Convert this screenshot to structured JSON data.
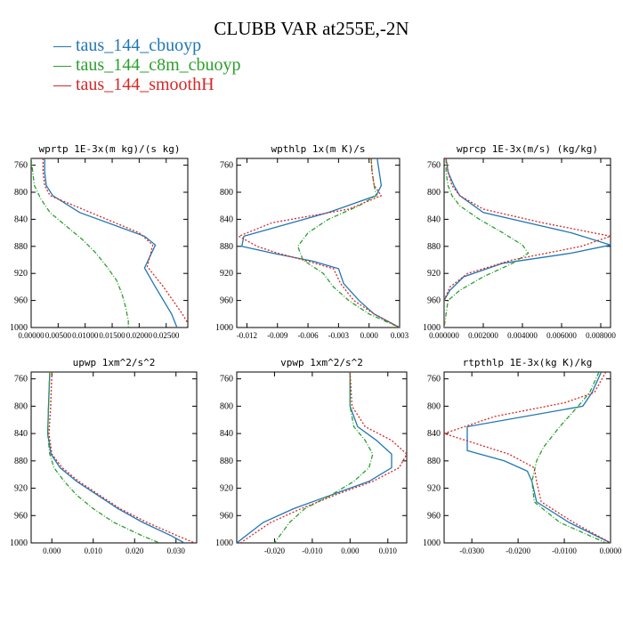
{
  "title": "CLUBB VAR at255E,-2N",
  "legend": [
    {
      "label": "taus_144_cbuoyp",
      "color": "#1f77b4"
    },
    {
      "label": "taus_144_c8m_cbuoyp",
      "color": "#2ca02c"
    },
    {
      "label": "taus_144_smoothH",
      "color": "#d62728"
    }
  ],
  "chart_data": [
    {
      "type": "line",
      "title": "wprtp  1E-3x(m kg)/(s kg)",
      "xlim": [
        0,
        0.029
      ],
      "ylim": [
        1000,
        750
      ],
      "yticks": [
        760,
        800,
        840,
        880,
        920,
        960,
        1000
      ],
      "xticks": [
        0.0,
        0.005,
        0.01,
        0.015,
        0.02,
        0.025
      ],
      "xtick_labels": [
        "0.00000",
        "0.00500",
        "0.01000",
        "0.01500",
        "0.02000",
        "0.02500"
      ],
      "series": [
        {
          "name": "taus_144_cbuoyp",
          "color": "#1f77b4",
          "dash": "",
          "y": [
            750,
            770,
            790,
            805,
            830,
            865,
            878,
            912,
            940,
            980,
            1000
          ],
          "x": [
            0.0025,
            0.0025,
            0.0028,
            0.004,
            0.009,
            0.021,
            0.023,
            0.021,
            0.023,
            0.026,
            0.027
          ]
        },
        {
          "name": "taus_144_c8m_cbuoyp",
          "color": "#2ca02c",
          "dash": "5,2,1,2",
          "y": [
            750,
            770,
            790,
            810,
            830,
            850,
            870,
            890,
            910,
            930,
            950,
            970,
            990,
            1000
          ],
          "x": [
            0.0,
            0.0003,
            0.0006,
            0.0018,
            0.0035,
            0.0065,
            0.0095,
            0.012,
            0.014,
            0.0158,
            0.0168,
            0.0175,
            0.018,
            0.018
          ]
        },
        {
          "name": "taus_144_smoothH",
          "color": "#d62728",
          "dash": "2,2",
          "y": [
            750,
            770,
            790,
            805,
            825,
            860,
            878,
            910,
            940,
            980,
            1000
          ],
          "x": [
            0.0022,
            0.0022,
            0.0025,
            0.0035,
            0.0095,
            0.02,
            0.0225,
            0.0215,
            0.0245,
            0.028,
            0.0295
          ]
        }
      ]
    },
    {
      "type": "line",
      "title": "wpthlp  1x(m K)/s",
      "xlim": [
        -0.013,
        0.003
      ],
      "ylim": [
        1000,
        750
      ],
      "yticks": [
        760,
        800,
        840,
        880,
        920,
        960,
        1000
      ],
      "xticks": [
        -0.012,
        -0.009,
        -0.006,
        -0.003,
        0.0,
        0.003
      ],
      "xtick_labels": [
        "-0.012",
        "-0.009",
        "-0.006",
        "-0.003",
        "0.000",
        "0.003"
      ],
      "series": [
        {
          "name": "taus_144_cbuoyp",
          "color": "#1f77b4",
          "dash": "",
          "y": [
            750,
            770,
            790,
            805,
            830,
            865,
            880,
            890,
            902,
            913,
            935,
            960,
            980,
            1000
          ],
          "x": [
            0.0008,
            0.001,
            0.0012,
            0.0007,
            -0.004,
            -0.0123,
            -0.0125,
            -0.0095,
            -0.0055,
            -0.003,
            -0.0025,
            -0.001,
            0.0005,
            0.003
          ]
        },
        {
          "name": "taus_144_c8m_cbuoyp",
          "color": "#2ca02c",
          "dash": "5,2,1,2",
          "y": [
            750,
            770,
            790,
            805,
            820,
            840,
            860,
            880,
            900,
            920,
            940,
            960,
            980,
            1000
          ],
          "x": [
            0.0002,
            0.0003,
            0.0005,
            0.0007,
            -0.001,
            -0.004,
            -0.006,
            -0.007,
            -0.0065,
            -0.0045,
            -0.0035,
            -0.002,
            0.0,
            0.003
          ]
        },
        {
          "name": "taus_144_smoothH",
          "color": "#d62728",
          "dash": "2,2",
          "y": [
            750,
            770,
            790,
            805,
            825,
            845,
            865,
            880,
            890,
            902,
            913,
            935,
            960,
            980,
            1000
          ],
          "x": [
            0.0002,
            0.0003,
            0.0005,
            0.0012,
            -0.002,
            -0.0095,
            -0.0128,
            -0.011,
            -0.009,
            -0.006,
            -0.0035,
            -0.0028,
            -0.0015,
            0.0005,
            0.003
          ]
        }
      ]
    },
    {
      "type": "line",
      "title": "wprcp  1E-3x(m/s) (kg/kg)",
      "xlim": [
        0,
        0.0085
      ],
      "ylim": [
        1000,
        750
      ],
      "yticks": [
        760,
        800,
        840,
        880,
        920,
        960,
        1000
      ],
      "xticks": [
        0.0,
        0.002,
        0.004,
        0.006,
        0.008
      ],
      "xtick_labels": [
        "0.000000",
        "0.002000",
        "0.004000",
        "0.006000",
        "0.008000"
      ],
      "series": [
        {
          "name": "taus_144_cbuoyp",
          "color": "#1f77b4",
          "dash": "",
          "y": [
            750,
            770,
            790,
            805,
            830,
            860,
            878,
            890,
            905,
            925,
            945,
            960,
            1000
          ],
          "x": [
            0.0001,
            0.0002,
            0.0005,
            0.0008,
            0.002,
            0.0065,
            0.0085,
            0.0065,
            0.003,
            0.001,
            0.0003,
            0.0,
            0.0
          ]
        },
        {
          "name": "taus_144_c8m_cbuoyp",
          "color": "#2ca02c",
          "dash": "5,2,1,2",
          "y": [
            750,
            770,
            790,
            805,
            820,
            840,
            860,
            878,
            890,
            905,
            925,
            945,
            960,
            1000
          ],
          "x": [
            0.0001,
            0.0001,
            0.0002,
            0.0004,
            0.0008,
            0.0018,
            0.003,
            0.004,
            0.0043,
            0.0035,
            0.002,
            0.0008,
            0.0002,
            0.0
          ]
        },
        {
          "name": "taus_144_smoothH",
          "color": "#d62728",
          "dash": "2,2",
          "y": [
            750,
            770,
            790,
            805,
            825,
            845,
            865,
            880,
            900,
            920,
            940,
            960,
            1000
          ],
          "x": [
            0.0001,
            0.0002,
            0.0004,
            0.0008,
            0.002,
            0.005,
            0.0085,
            0.007,
            0.0035,
            0.0012,
            0.0003,
            0.0,
            0.0
          ]
        }
      ]
    },
    {
      "type": "line",
      "title": "upwp  1xm^2/s^2",
      "xlim": [
        -0.005,
        0.035
      ],
      "ylim": [
        1000,
        750
      ],
      "yticks": [
        760,
        800,
        840,
        880,
        920,
        960,
        1000
      ],
      "xticks": [
        0.0,
        0.01,
        0.02,
        0.03
      ],
      "xtick_labels": [
        "0.000",
        "0.010",
        "0.020",
        "0.030"
      ],
      "series": [
        {
          "name": "taus_144_cbuoyp",
          "color": "#1f77b4",
          "dash": "",
          "y": [
            750,
            800,
            840,
            870,
            890,
            910,
            930,
            950,
            970,
            990,
            1000
          ],
          "x": [
            -0.0005,
            -0.0008,
            -0.001,
            -0.0002,
            0.002,
            0.006,
            0.011,
            0.016,
            0.022,
            0.029,
            0.032
          ]
        },
        {
          "name": "taus_144_c8m_cbuoyp",
          "color": "#2ca02c",
          "dash": "5,2,1,2",
          "y": [
            750,
            800,
            840,
            870,
            890,
            910,
            930,
            950,
            970,
            990,
            1000
          ],
          "x": [
            -0.0005,
            -0.0008,
            -0.001,
            -0.0005,
            0.0005,
            0.003,
            0.006,
            0.01,
            0.015,
            0.022,
            0.026
          ]
        },
        {
          "name": "taus_144_smoothH",
          "color": "#d62728",
          "dash": "2,2",
          "y": [
            750,
            800,
            840,
            870,
            890,
            910,
            930,
            950,
            970,
            990,
            1000
          ],
          "x": [
            0.0,
            -0.0003,
            -0.0007,
            0.0,
            0.0025,
            0.0065,
            0.0115,
            0.0165,
            0.023,
            0.0305,
            0.0345
          ]
        }
      ]
    },
    {
      "type": "line",
      "title": "vpwp  1xm^2/s^2",
      "xlim": [
        -0.03,
        0.015
      ],
      "ylim": [
        1000,
        750
      ],
      "yticks": [
        760,
        800,
        840,
        880,
        920,
        960,
        1000
      ],
      "xticks": [
        -0.02,
        -0.01,
        0.0,
        0.01
      ],
      "xtick_labels": [
        "-0.020",
        "-0.010",
        "0.000",
        "0.010"
      ],
      "series": [
        {
          "name": "taus_144_cbuoyp",
          "color": "#1f77b4",
          "dash": "",
          "y": [
            750,
            800,
            830,
            850,
            870,
            890,
            910,
            930,
            950,
            970,
            1000
          ],
          "x": [
            0.0,
            0.0,
            0.002,
            0.007,
            0.011,
            0.011,
            0.005,
            -0.005,
            -0.015,
            -0.023,
            -0.03
          ]
        },
        {
          "name": "taus_144_c8m_cbuoyp",
          "color": "#2ca02c",
          "dash": "5,2,1,2",
          "y": [
            750,
            800,
            830,
            850,
            870,
            890,
            910,
            930,
            950,
            970,
            1000
          ],
          "x": [
            0.0,
            0.0,
            0.001,
            0.004,
            0.006,
            0.005,
            0.001,
            -0.005,
            -0.012,
            -0.016,
            -0.02
          ]
        },
        {
          "name": "taus_144_smoothH",
          "color": "#d62728",
          "dash": "2,2",
          "y": [
            750,
            800,
            830,
            850,
            870,
            890,
            910,
            930,
            950,
            970,
            1000
          ],
          "x": [
            0.0,
            0.0005,
            0.004,
            0.011,
            0.015,
            0.013,
            0.006,
            -0.004,
            -0.013,
            -0.021,
            -0.029
          ]
        }
      ]
    },
    {
      "type": "line",
      "title": "rtpthlp  1E-3x(kg K)/kg",
      "xlim": [
        -0.036,
        0.0
      ],
      "ylim": [
        1000,
        750
      ],
      "yticks": [
        760,
        800,
        840,
        880,
        920,
        960,
        1000
      ],
      "xticks": [
        -0.03,
        -0.02,
        -0.01,
        0.0
      ],
      "xtick_labels": [
        "-0.0300",
        "-0.0200",
        "-0.0100",
        "0.0000"
      ],
      "series": [
        {
          "name": "taus_144_cbuoyp",
          "color": "#1f77b4",
          "dash": "",
          "y": [
            750,
            780,
            800,
            830,
            865,
            880,
            895,
            910,
            940,
            970,
            1000
          ],
          "x": [
            -0.002,
            -0.004,
            -0.006,
            -0.031,
            -0.031,
            -0.023,
            -0.018,
            -0.017,
            -0.016,
            -0.009,
            0.0
          ]
        },
        {
          "name": "taus_144_c8m_cbuoyp",
          "color": "#2ca02c",
          "dash": "5,2,1,2",
          "y": [
            750,
            780,
            800,
            830,
            860,
            880,
            895,
            910,
            940,
            970,
            1000
          ],
          "x": [
            -0.0025,
            -0.0045,
            -0.007,
            -0.011,
            -0.0145,
            -0.016,
            -0.0165,
            -0.017,
            -0.0165,
            -0.011,
            -0.001
          ]
        },
        {
          "name": "taus_144_smoothH",
          "color": "#d62728",
          "dash": "2,2",
          "y": [
            750,
            780,
            795,
            815,
            840,
            870,
            890,
            910,
            940,
            970,
            1000
          ],
          "x": [
            -0.001,
            -0.0035,
            -0.01,
            -0.025,
            -0.036,
            -0.022,
            -0.0165,
            -0.016,
            -0.015,
            -0.008,
            0.0
          ]
        }
      ]
    }
  ]
}
